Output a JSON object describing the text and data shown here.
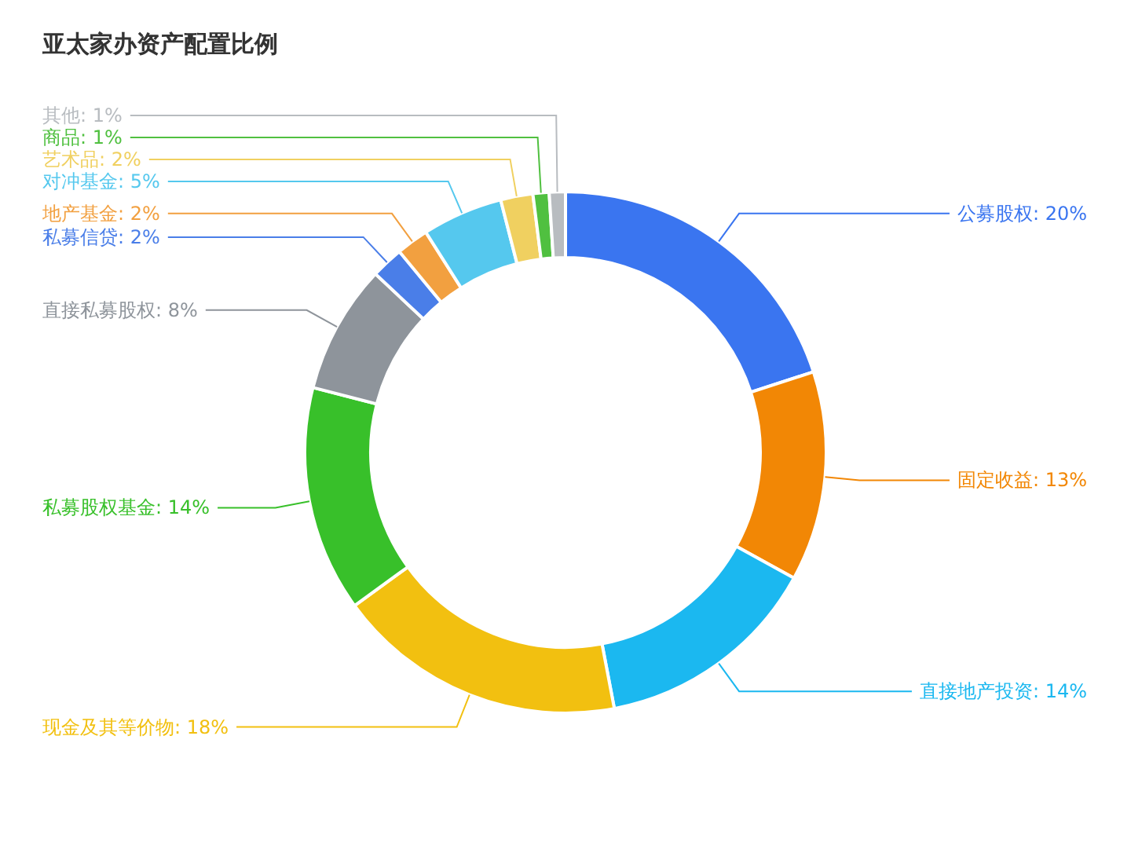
{
  "chart_data": {
    "type": "donut",
    "title": "亚太家办资产配置比例",
    "categories": [
      "公募股权",
      "固定收益",
      "直接地产投资",
      "现金及其等价物",
      "私募股权基金",
      "直接私募股权",
      "私募信贷",
      "地产基金",
      "对冲基金",
      "艺术品",
      "商品",
      "其他"
    ],
    "values": [
      20,
      13,
      14,
      18,
      14,
      8,
      2,
      2,
      5,
      2,
      1,
      1
    ],
    "value_labels": [
      "20%",
      "13%",
      "14%",
      "18%",
      "14%",
      "8%",
      "2%",
      "2%",
      "5%",
      "2%",
      "1%",
      "1%"
    ],
    "colors": [
      "#3a75f0",
      "#f28705",
      "#1bb8f0",
      "#f2c010",
      "#38c02a",
      "#8e949b",
      "#4a7ee8",
      "#f2a040",
      "#55c8ee",
      "#f0d060",
      "#50c040",
      "#b8bcc0"
    ]
  }
}
